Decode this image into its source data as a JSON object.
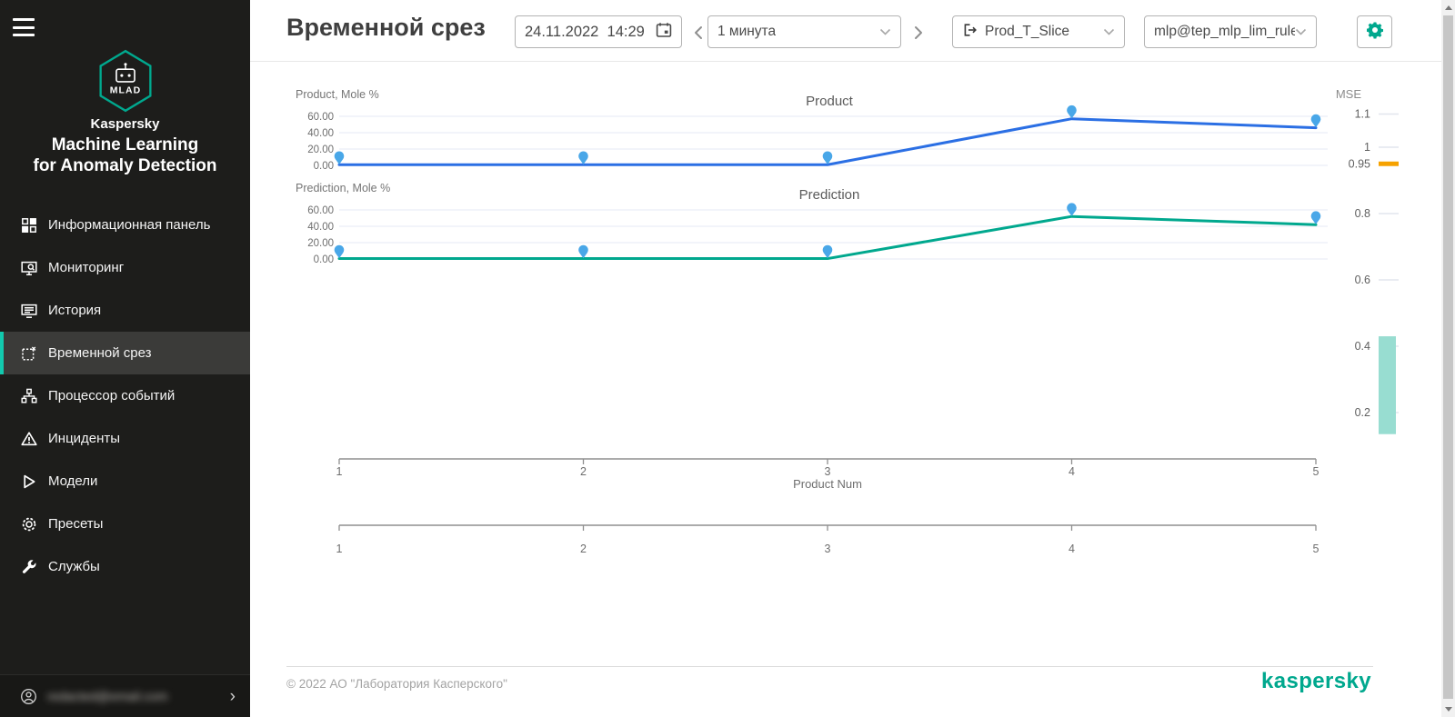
{
  "sidebar": {
    "brand": {
      "logo_text": "MLAD",
      "line1": "Kaspersky",
      "line2": "Machine Learning",
      "line3": "for Anomaly Detection"
    },
    "items": [
      {
        "key": "dashboard",
        "label": "Информационная панель",
        "icon": "dashboard-icon",
        "selected": false
      },
      {
        "key": "monitoring",
        "label": "Мониторинг",
        "icon": "monitoring-icon",
        "selected": false
      },
      {
        "key": "history",
        "label": "История",
        "icon": "history-icon",
        "selected": false
      },
      {
        "key": "time-slice",
        "label": "Временной срез",
        "icon": "time-slice-icon",
        "selected": true
      },
      {
        "key": "event-processor",
        "label": "Процессор событий",
        "icon": "event-processor-icon",
        "selected": false
      },
      {
        "key": "incidents",
        "label": "Инциденты",
        "icon": "incidents-icon",
        "selected": false
      },
      {
        "key": "models",
        "label": "Модели",
        "icon": "models-icon",
        "selected": false
      },
      {
        "key": "presets",
        "label": "Пресеты",
        "icon": "presets-icon",
        "selected": false
      },
      {
        "key": "services",
        "label": "Службы",
        "icon": "services-icon",
        "selected": false
      }
    ],
    "user": {
      "email_blurred": "redacted@email.com"
    }
  },
  "header": {
    "title": "Временной срез",
    "datetime": {
      "value": "24.11.2022  14:29"
    },
    "interval_select": {
      "value": "1 минута"
    },
    "slice_select": {
      "value": "Prod_T_Slice"
    },
    "model_select": {
      "value": "mlp@tep_mlp_lim_rule..."
    }
  },
  "chart_data": [
    {
      "type": "line",
      "title": "Product",
      "ylabel": "Product, Mole %",
      "x": [
        1,
        2,
        3,
        4,
        5
      ],
      "values": [
        0.8,
        0.8,
        0.8,
        57,
        46
      ],
      "yticks": [
        {
          "label": "60.00",
          "v": 60
        },
        {
          "label": "40.00",
          "v": 40
        },
        {
          "label": "20.00",
          "v": 20
        },
        {
          "label": "0.00",
          "v": 0
        }
      ],
      "ylim": [
        0,
        65
      ],
      "grid": true,
      "line_color": "#2b6fe4",
      "marker_color": "#49a7e8"
    },
    {
      "type": "line",
      "title": "Prediction",
      "ylabel": "Prediction, Mole %",
      "x": [
        1,
        2,
        3,
        4,
        5
      ],
      "values": [
        0.5,
        0.5,
        0.5,
        52,
        42
      ],
      "yticks": [
        {
          "label": "60.00",
          "v": 60
        },
        {
          "label": "40.00",
          "v": 40
        },
        {
          "label": "20.00",
          "v": 20
        },
        {
          "label": "0.00",
          "v": 0
        }
      ],
      "ylim": [
        0,
        65
      ],
      "grid": true,
      "line_color": "#00a88e",
      "marker_color": "#49a7e8"
    },
    {
      "type": "gauge",
      "title": "MSE",
      "ticks": [
        {
          "label": "1.1",
          "v": 1.1
        },
        {
          "label": "1",
          "v": 1
        },
        {
          "label": "0.95",
          "v": 0.95
        },
        {
          "label": "0.8",
          "v": 0.8
        },
        {
          "label": "0.6",
          "v": 0.6
        },
        {
          "label": "0.4",
          "v": 0.4
        },
        {
          "label": "0.2",
          "v": 0.2
        }
      ],
      "threshold_value": 0.95,
      "threshold_color": "#f6a200",
      "bar_range": [
        0.135,
        0.43
      ],
      "bar_color": "#98ddd1"
    },
    {
      "type": "axis",
      "label": "Product Num",
      "ticks": [
        "1",
        "2",
        "3",
        "4",
        "5"
      ]
    },
    {
      "type": "axis",
      "label": "",
      "ticks": [
        "1",
        "2",
        "3",
        "4",
        "5"
      ]
    }
  ],
  "footer": {
    "copyright": "© 2022 АО \"Лаборатория Касперского\"",
    "brand": "kaspersky"
  },
  "colors": {
    "accent": "#00a88e",
    "sidebar_selected_bar": "#12c9ae",
    "product_line": "#2b6fe4",
    "prediction_line": "#00a88e",
    "marker": "#49a7e8",
    "threshold": "#f6a200",
    "mse_bar": "#98ddd1"
  }
}
